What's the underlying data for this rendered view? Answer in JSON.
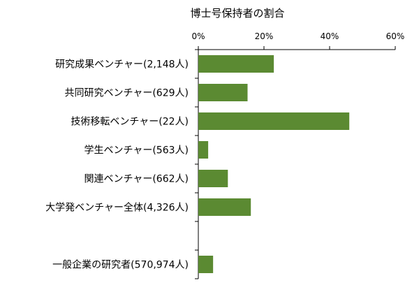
{
  "chart_data": {
    "type": "bar",
    "orientation": "horizontal",
    "title": "博士号保持者の割合",
    "xlabel": "",
    "ylabel": "",
    "xlim": [
      0,
      60
    ],
    "x_ticks": [
      "0%",
      "20%",
      "40%",
      "60%"
    ],
    "x_tick_values": [
      0,
      20,
      40,
      60
    ],
    "categories": [
      "研究成果ベンチャー(2,148人)",
      "共同研究ベンチャー(629人)",
      "技術移転ベンチャー(22人)",
      "学生ベンチャー(563人)",
      "関連ベンチャー(662人)",
      "大学発ベンチャー全体(4,326人)",
      "",
      "一般企業の研究者(570,974人)"
    ],
    "values": [
      23,
      15,
      46,
      3,
      9,
      16,
      null,
      4.5
    ],
    "bar_color": "#5b8a32",
    "grid": false,
    "legend": "none"
  }
}
